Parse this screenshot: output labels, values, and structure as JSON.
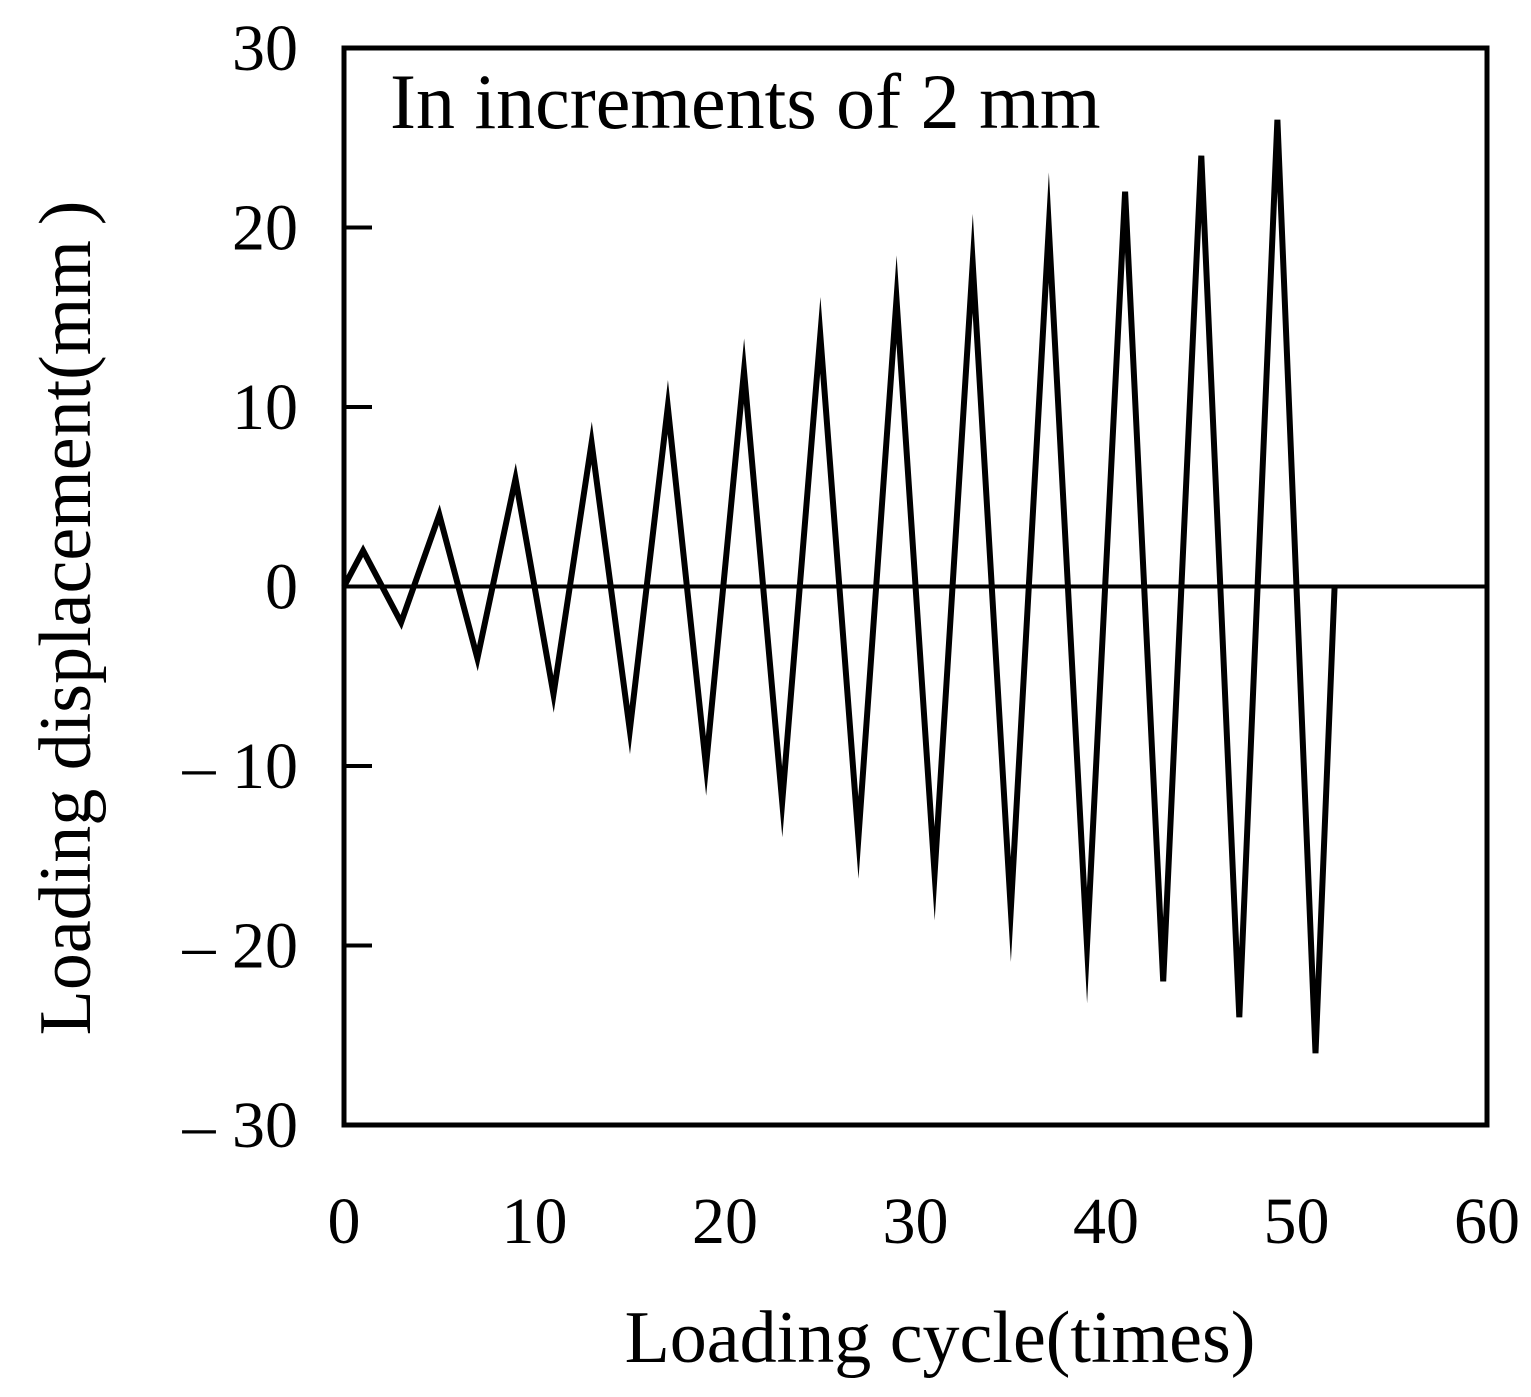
{
  "chart_data": {
    "type": "line",
    "title": "",
    "annotation": "In increments of 2 mm",
    "xlabel": "Loading cycle(times)",
    "ylabel": "Loading displacement(mm )",
    "xlim": [
      0,
      60
    ],
    "ylim": [
      -30,
      30
    ],
    "x_ticks": [
      0,
      10,
      20,
      30,
      40,
      50,
      60
    ],
    "x_tick_labels": [
      "0",
      "10",
      "20",
      "30",
      "40",
      "50",
      "60"
    ],
    "y_ticks": [
      30,
      20,
      10,
      0,
      -10,
      -20,
      -30
    ],
    "y_tick_labels": [
      "30",
      "20",
      "10",
      "0",
      "– 10",
      "– 20",
      "– 30"
    ],
    "grid": false,
    "legend": "none",
    "colors": {
      "line": "#000000",
      "axes": "#000000",
      "background": "#ffffff"
    },
    "zero_line": {
      "y": 0,
      "x_range": [
        0,
        60
      ]
    },
    "series": [
      {
        "name": "Loading displacement",
        "x": [
          0,
          1,
          3,
          5,
          7,
          9,
          11,
          13,
          15,
          17,
          19,
          21,
          23,
          25,
          27,
          29,
          31,
          33,
          35,
          37,
          39,
          41,
          43,
          45,
          47,
          49,
          51,
          52
        ],
        "y": [
          0,
          2,
          -2,
          4,
          -4,
          6,
          -6,
          8,
          -8,
          10,
          -10,
          12,
          -12,
          14,
          -14,
          16,
          -16,
          18,
          -18,
          20,
          -20,
          22,
          -22,
          24,
          -24,
          26,
          -26,
          0
        ]
      }
    ]
  }
}
